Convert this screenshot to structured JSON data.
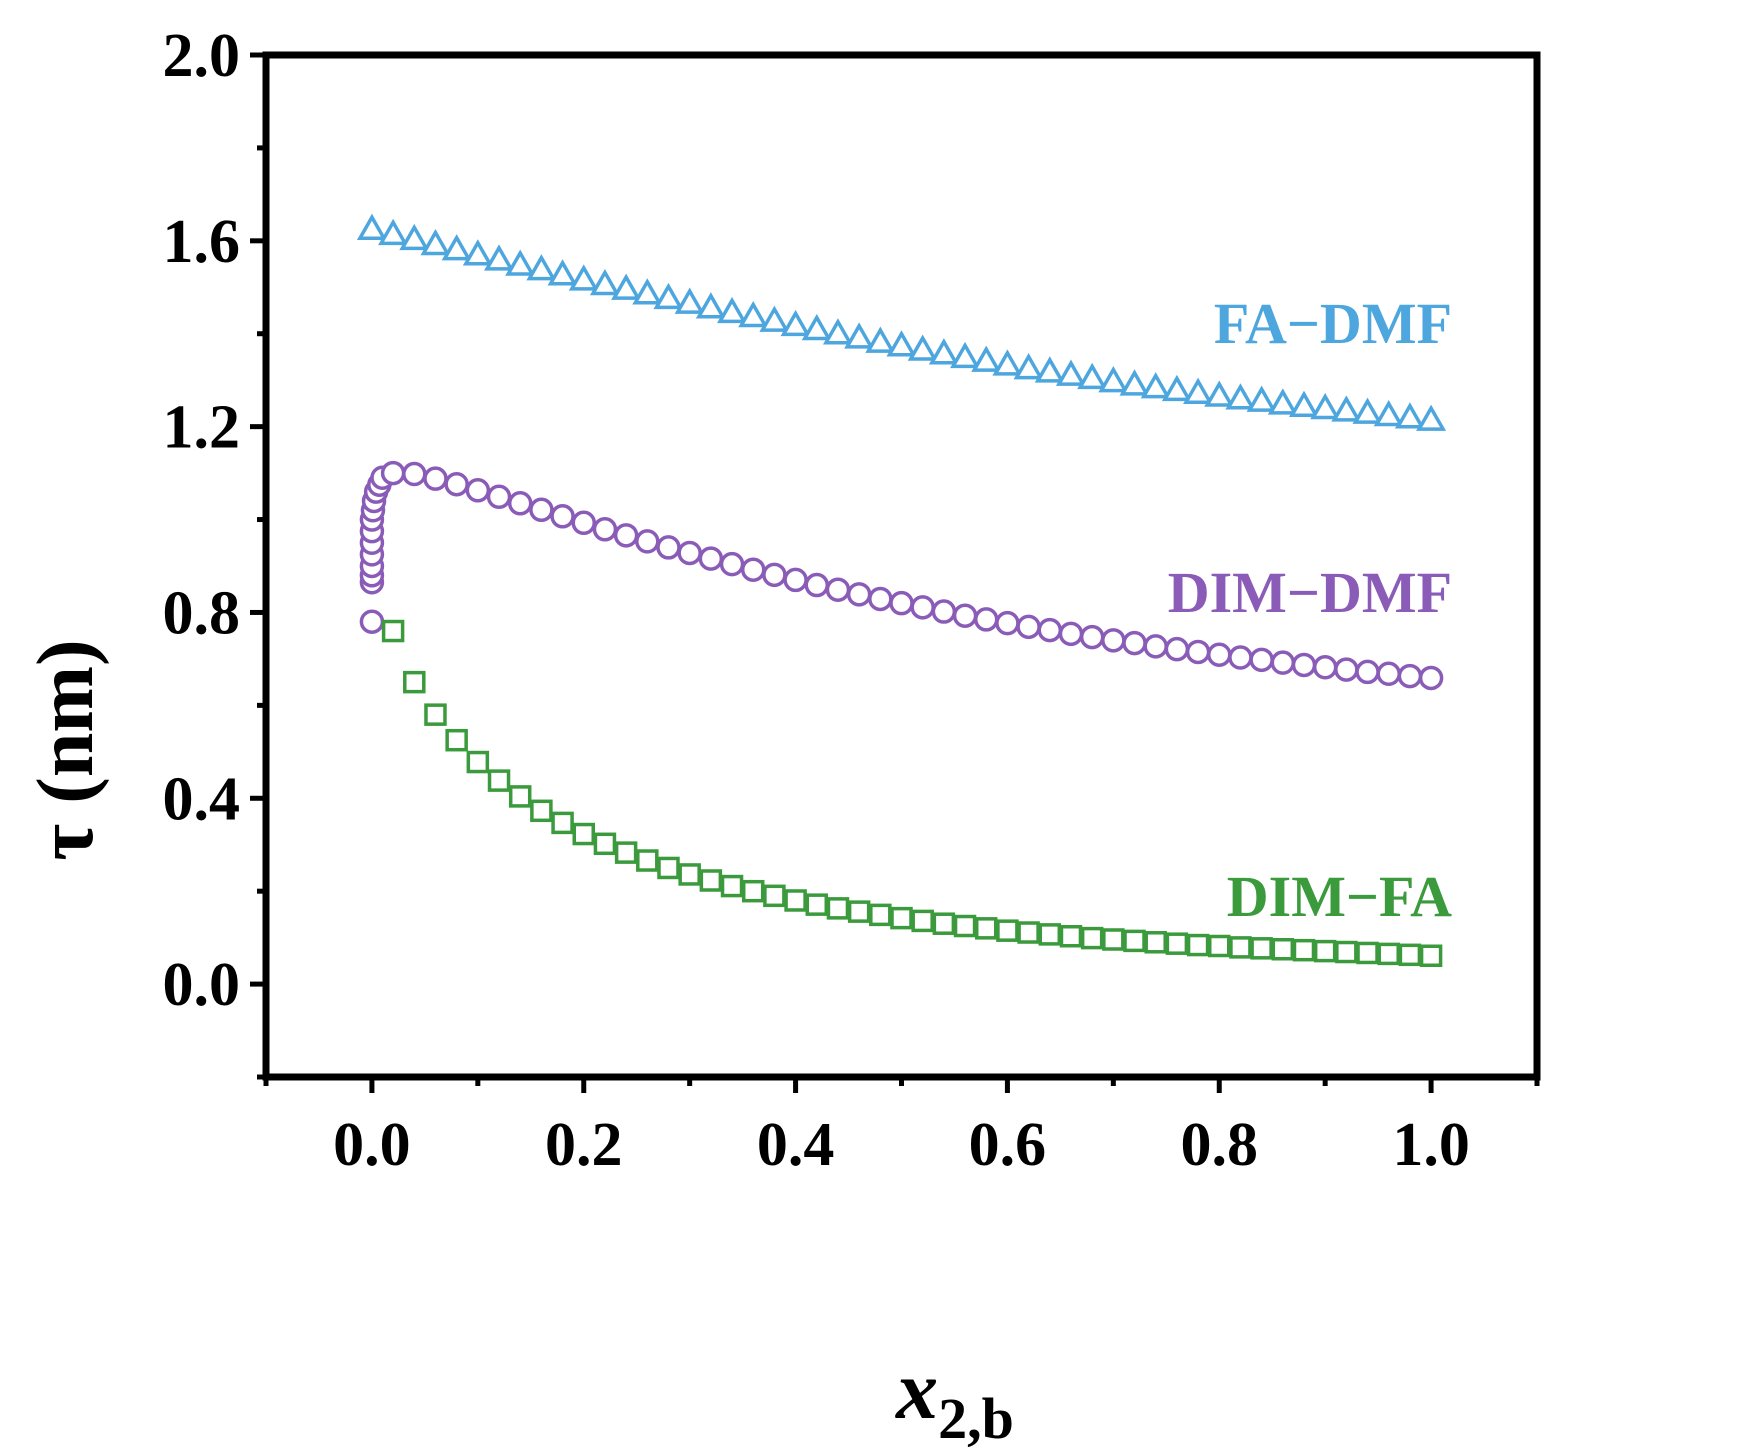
{
  "chart_data": {
    "type": "scatter",
    "title": "",
    "xlabel": {
      "main": "x",
      "subscript": "2,b"
    },
    "ylabel": "τ (nm)",
    "xlim": [
      -0.1,
      1.1
    ],
    "ylim": [
      -0.2,
      2.0
    ],
    "x_ticks": [
      "0.0",
      "0.2",
      "0.4",
      "0.6",
      "0.8",
      "1.0"
    ],
    "y_ticks": [
      "0.0",
      "0.4",
      "0.8",
      "1.2",
      "1.6",
      "2.0"
    ],
    "grid": false,
    "legend": "inline labels at right end of each series",
    "series": [
      {
        "name": "FA−DMF",
        "marker": "triangle",
        "color": "#4da6de",
        "points": [
          [
            0.0,
            1.625
          ],
          [
            0.02,
            1.614
          ],
          [
            0.04,
            1.603
          ],
          [
            0.06,
            1.592
          ],
          [
            0.08,
            1.581
          ],
          [
            0.1,
            1.57
          ],
          [
            0.12,
            1.559
          ],
          [
            0.14,
            1.548
          ],
          [
            0.16,
            1.538
          ],
          [
            0.18,
            1.527
          ],
          [
            0.2,
            1.516
          ],
          [
            0.22,
            1.506
          ],
          [
            0.24,
            1.496
          ],
          [
            0.26,
            1.486
          ],
          [
            0.28,
            1.476
          ],
          [
            0.3,
            1.466
          ],
          [
            0.32,
            1.456
          ],
          [
            0.34,
            1.446
          ],
          [
            0.36,
            1.437
          ],
          [
            0.38,
            1.427
          ],
          [
            0.4,
            1.418
          ],
          [
            0.42,
            1.409
          ],
          [
            0.44,
            1.4
          ],
          [
            0.46,
            1.391
          ],
          [
            0.48,
            1.382
          ],
          [
            0.5,
            1.374
          ],
          [
            0.52,
            1.365
          ],
          [
            0.54,
            1.357
          ],
          [
            0.56,
            1.349
          ],
          [
            0.58,
            1.341
          ],
          [
            0.6,
            1.333
          ],
          [
            0.62,
            1.325
          ],
          [
            0.64,
            1.318
          ],
          [
            0.66,
            1.311
          ],
          [
            0.68,
            1.304
          ],
          [
            0.7,
            1.297
          ],
          [
            0.72,
            1.29
          ],
          [
            0.74,
            1.284
          ],
          [
            0.76,
            1.278
          ],
          [
            0.78,
            1.272
          ],
          [
            0.8,
            1.266
          ],
          [
            0.82,
            1.26
          ],
          [
            0.84,
            1.255
          ],
          [
            0.86,
            1.249
          ],
          [
            0.88,
            1.244
          ],
          [
            0.9,
            1.239
          ],
          [
            0.92,
            1.234
          ],
          [
            0.94,
            1.229
          ],
          [
            0.96,
            1.224
          ],
          [
            0.98,
            1.219
          ],
          [
            1.0,
            1.214
          ]
        ]
      },
      {
        "name": "DIM−DMF",
        "marker": "circle",
        "color": "#8a5cb8",
        "points": [
          [
            0.0,
            0.78
          ],
          [
            0.0,
            0.865
          ],
          [
            0.0,
            0.88
          ],
          [
            0.0,
            0.9
          ],
          [
            0.0,
            0.925
          ],
          [
            0.0,
            0.95
          ],
          [
            0.0,
            0.975
          ],
          [
            0.0,
            1.0
          ],
          [
            0.001,
            1.02
          ],
          [
            0.002,
            1.04
          ],
          [
            0.004,
            1.06
          ],
          [
            0.007,
            1.075
          ],
          [
            0.01,
            1.09
          ],
          [
            0.02,
            1.1
          ],
          [
            0.04,
            1.098
          ],
          [
            0.06,
            1.088
          ],
          [
            0.08,
            1.076
          ],
          [
            0.1,
            1.063
          ],
          [
            0.12,
            1.049
          ],
          [
            0.14,
            1.035
          ],
          [
            0.16,
            1.021
          ],
          [
            0.18,
            1.007
          ],
          [
            0.2,
            0.993
          ],
          [
            0.22,
            0.979
          ],
          [
            0.24,
            0.966
          ],
          [
            0.26,
            0.953
          ],
          [
            0.28,
            0.94
          ],
          [
            0.3,
            0.928
          ],
          [
            0.32,
            0.916
          ],
          [
            0.34,
            0.904
          ],
          [
            0.36,
            0.892
          ],
          [
            0.38,
            0.881
          ],
          [
            0.4,
            0.87
          ],
          [
            0.42,
            0.859
          ],
          [
            0.44,
            0.849
          ],
          [
            0.46,
            0.839
          ],
          [
            0.48,
            0.829
          ],
          [
            0.5,
            0.82
          ],
          [
            0.52,
            0.811
          ],
          [
            0.54,
            0.802
          ],
          [
            0.56,
            0.793
          ],
          [
            0.58,
            0.785
          ],
          [
            0.6,
            0.777
          ],
          [
            0.62,
            0.769
          ],
          [
            0.64,
            0.762
          ],
          [
            0.66,
            0.754
          ],
          [
            0.68,
            0.747
          ],
          [
            0.7,
            0.74
          ],
          [
            0.72,
            0.734
          ],
          [
            0.74,
            0.727
          ],
          [
            0.76,
            0.721
          ],
          [
            0.78,
            0.715
          ],
          [
            0.8,
            0.709
          ],
          [
            0.82,
            0.703
          ],
          [
            0.84,
            0.698
          ],
          [
            0.86,
            0.692
          ],
          [
            0.88,
            0.687
          ],
          [
            0.9,
            0.682
          ],
          [
            0.92,
            0.677
          ],
          [
            0.94,
            0.672
          ],
          [
            0.96,
            0.668
          ],
          [
            0.98,
            0.663
          ],
          [
            1.0,
            0.659
          ]
        ]
      },
      {
        "name": "DIM−FA",
        "marker": "square",
        "color": "#3a9a3c",
        "points": [
          [
            0.02,
            0.76
          ],
          [
            0.04,
            0.65
          ],
          [
            0.06,
            0.58
          ],
          [
            0.08,
            0.525
          ],
          [
            0.1,
            0.478
          ],
          [
            0.12,
            0.438
          ],
          [
            0.14,
            0.404
          ],
          [
            0.16,
            0.373
          ],
          [
            0.18,
            0.347
          ],
          [
            0.2,
            0.323
          ],
          [
            0.22,
            0.302
          ],
          [
            0.24,
            0.283
          ],
          [
            0.26,
            0.266
          ],
          [
            0.28,
            0.25
          ],
          [
            0.3,
            0.236
          ],
          [
            0.32,
            0.223
          ],
          [
            0.34,
            0.211
          ],
          [
            0.36,
            0.2
          ],
          [
            0.38,
            0.19
          ],
          [
            0.4,
            0.18
          ],
          [
            0.42,
            0.171
          ],
          [
            0.44,
            0.163
          ],
          [
            0.46,
            0.156
          ],
          [
            0.48,
            0.149
          ],
          [
            0.5,
            0.142
          ],
          [
            0.52,
            0.136
          ],
          [
            0.54,
            0.13
          ],
          [
            0.56,
            0.125
          ],
          [
            0.58,
            0.12
          ],
          [
            0.6,
            0.115
          ],
          [
            0.62,
            0.111
          ],
          [
            0.64,
            0.107
          ],
          [
            0.66,
            0.103
          ],
          [
            0.68,
            0.099
          ],
          [
            0.7,
            0.096
          ],
          [
            0.72,
            0.093
          ],
          [
            0.74,
            0.09
          ],
          [
            0.76,
            0.087
          ],
          [
            0.78,
            0.084
          ],
          [
            0.8,
            0.082
          ],
          [
            0.82,
            0.079
          ],
          [
            0.84,
            0.077
          ],
          [
            0.86,
            0.075
          ],
          [
            0.88,
            0.073
          ],
          [
            0.9,
            0.071
          ],
          [
            0.92,
            0.069
          ],
          [
            0.94,
            0.067
          ],
          [
            0.96,
            0.065
          ],
          [
            0.98,
            0.063
          ],
          [
            1.0,
            0.061
          ]
        ]
      }
    ]
  }
}
